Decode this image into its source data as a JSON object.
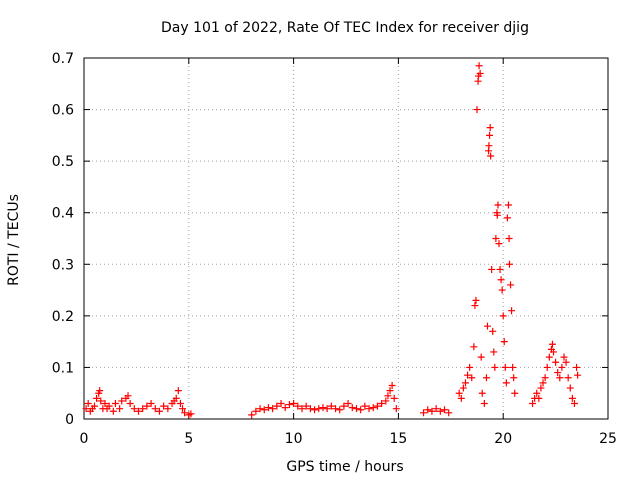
{
  "chart_data": {
    "type": "scatter",
    "title": "Day 101 of 2022, Rate Of TEC Index for receiver djig",
    "xlabel": "GPS time / hours",
    "ylabel": "ROTI / TECUs",
    "xlim": [
      0,
      25
    ],
    "ylim": [
      0,
      0.7
    ],
    "xticks": [
      0,
      5,
      10,
      15,
      20,
      25
    ],
    "yticks": [
      0,
      0.1,
      0.2,
      0.3,
      0.4,
      0.5,
      0.6,
      0.7
    ],
    "grid": true,
    "marker": "+",
    "color": "#ff0000",
    "series": [
      {
        "name": "ROTI",
        "points": [
          [
            0.1,
            0.02
          ],
          [
            0.2,
            0.03
          ],
          [
            0.3,
            0.015
          ],
          [
            0.4,
            0.02
          ],
          [
            0.5,
            0.025
          ],
          [
            0.6,
            0.04
          ],
          [
            0.7,
            0.05
          ],
          [
            0.75,
            0.055
          ],
          [
            0.8,
            0.035
          ],
          [
            0.9,
            0.02
          ],
          [
            1.0,
            0.03
          ],
          [
            1.1,
            0.02
          ],
          [
            1.2,
            0.025
          ],
          [
            1.4,
            0.015
          ],
          [
            1.5,
            0.03
          ],
          [
            1.7,
            0.02
          ],
          [
            1.8,
            0.035
          ],
          [
            2.0,
            0.04
          ],
          [
            2.1,
            0.045
          ],
          [
            2.2,
            0.03
          ],
          [
            2.4,
            0.02
          ],
          [
            2.6,
            0.015
          ],
          [
            2.8,
            0.02
          ],
          [
            3.0,
            0.025
          ],
          [
            3.2,
            0.03
          ],
          [
            3.4,
            0.02
          ],
          [
            3.6,
            0.015
          ],
          [
            3.8,
            0.025
          ],
          [
            4.0,
            0.02
          ],
          [
            4.2,
            0.03
          ],
          [
            4.3,
            0.035
          ],
          [
            4.4,
            0.04
          ],
          [
            4.5,
            0.055
          ],
          [
            4.6,
            0.03
          ],
          [
            4.7,
            0.02
          ],
          [
            4.8,
            0.012
          ],
          [
            5.0,
            0.008
          ],
          [
            5.1,
            0.01
          ],
          [
            8.0,
            0.008
          ],
          [
            8.2,
            0.015
          ],
          [
            8.4,
            0.02
          ],
          [
            8.6,
            0.018
          ],
          [
            8.8,
            0.022
          ],
          [
            9.0,
            0.02
          ],
          [
            9.2,
            0.025
          ],
          [
            9.4,
            0.03
          ],
          [
            9.6,
            0.022
          ],
          [
            9.8,
            0.028
          ],
          [
            10.0,
            0.03
          ],
          [
            10.2,
            0.025
          ],
          [
            10.4,
            0.02
          ],
          [
            10.6,
            0.025
          ],
          [
            10.8,
            0.02
          ],
          [
            11.0,
            0.018
          ],
          [
            11.2,
            0.02
          ],
          [
            11.4,
            0.022
          ],
          [
            11.6,
            0.02
          ],
          [
            11.8,
            0.025
          ],
          [
            12.0,
            0.02
          ],
          [
            12.2,
            0.018
          ],
          [
            12.4,
            0.025
          ],
          [
            12.6,
            0.03
          ],
          [
            12.8,
            0.022
          ],
          [
            13.0,
            0.02
          ],
          [
            13.2,
            0.018
          ],
          [
            13.4,
            0.025
          ],
          [
            13.6,
            0.02
          ],
          [
            13.8,
            0.022
          ],
          [
            14.0,
            0.025
          ],
          [
            14.2,
            0.03
          ],
          [
            14.4,
            0.035
          ],
          [
            14.5,
            0.045
          ],
          [
            14.6,
            0.055
          ],
          [
            14.7,
            0.065
          ],
          [
            14.8,
            0.04
          ],
          [
            14.9,
            0.02
          ],
          [
            16.2,
            0.012
          ],
          [
            16.4,
            0.018
          ],
          [
            16.6,
            0.015
          ],
          [
            16.8,
            0.02
          ],
          [
            17.0,
            0.015
          ],
          [
            17.2,
            0.018
          ],
          [
            17.4,
            0.012
          ],
          [
            17.9,
            0.05
          ],
          [
            18.0,
            0.04
          ],
          [
            18.1,
            0.06
          ],
          [
            18.2,
            0.07
          ],
          [
            18.3,
            0.085
          ],
          [
            18.4,
            0.1
          ],
          [
            18.5,
            0.08
          ],
          [
            18.6,
            0.14
          ],
          [
            18.65,
            0.22
          ],
          [
            18.7,
            0.23
          ],
          [
            18.75,
            0.6
          ],
          [
            18.8,
            0.655
          ],
          [
            18.82,
            0.665
          ],
          [
            18.85,
            0.685
          ],
          [
            18.9,
            0.67
          ],
          [
            18.95,
            0.12
          ],
          [
            19.0,
            0.05
          ],
          [
            19.1,
            0.03
          ],
          [
            19.2,
            0.08
          ],
          [
            19.25,
            0.18
          ],
          [
            19.3,
            0.52
          ],
          [
            19.32,
            0.53
          ],
          [
            19.35,
            0.55
          ],
          [
            19.38,
            0.565
          ],
          [
            19.4,
            0.51
          ],
          [
            19.45,
            0.29
          ],
          [
            19.5,
            0.17
          ],
          [
            19.55,
            0.13
          ],
          [
            19.6,
            0.1
          ],
          [
            19.65,
            0.35
          ],
          [
            19.7,
            0.4
          ],
          [
            19.72,
            0.395
          ],
          [
            19.75,
            0.415
          ],
          [
            19.8,
            0.34
          ],
          [
            19.85,
            0.29
          ],
          [
            19.9,
            0.27
          ],
          [
            19.95,
            0.25
          ],
          [
            20.0,
            0.2
          ],
          [
            20.05,
            0.15
          ],
          [
            20.1,
            0.1
          ],
          [
            20.15,
            0.07
          ],
          [
            20.2,
            0.39
          ],
          [
            20.25,
            0.415
          ],
          [
            20.28,
            0.35
          ],
          [
            20.3,
            0.3
          ],
          [
            20.35,
            0.26
          ],
          [
            20.4,
            0.21
          ],
          [
            20.45,
            0.1
          ],
          [
            20.5,
            0.08
          ],
          [
            20.55,
            0.05
          ],
          [
            21.4,
            0.03
          ],
          [
            21.5,
            0.04
          ],
          [
            21.6,
            0.05
          ],
          [
            21.7,
            0.04
          ],
          [
            21.8,
            0.06
          ],
          [
            21.9,
            0.07
          ],
          [
            22.0,
            0.08
          ],
          [
            22.1,
            0.1
          ],
          [
            22.2,
            0.12
          ],
          [
            22.3,
            0.135
          ],
          [
            22.35,
            0.145
          ],
          [
            22.4,
            0.13
          ],
          [
            22.5,
            0.11
          ],
          [
            22.6,
            0.09
          ],
          [
            22.7,
            0.08
          ],
          [
            22.8,
            0.1
          ],
          [
            22.9,
            0.12
          ],
          [
            23.0,
            0.11
          ],
          [
            23.1,
            0.08
          ],
          [
            23.2,
            0.06
          ],
          [
            23.3,
            0.04
          ],
          [
            23.4,
            0.03
          ],
          [
            23.5,
            0.1
          ],
          [
            23.55,
            0.085
          ]
        ]
      }
    ]
  }
}
